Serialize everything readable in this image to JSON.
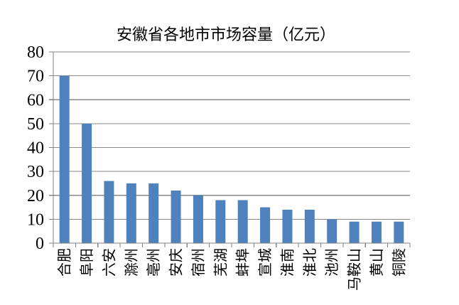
{
  "chart_data": {
    "type": "bar",
    "title": "安徽省各地市市场容量（亿元）",
    "categories": [
      "合肥",
      "阜阳",
      "六安",
      "滁州",
      "亳州",
      "安庆",
      "宿州",
      "芜湖",
      "蚌埠",
      "宣城",
      "淮南",
      "淮北",
      "池州",
      "马鞍山",
      "黄山",
      "铜陵"
    ],
    "values": [
      70,
      50,
      26,
      25,
      25,
      22,
      20,
      18,
      18,
      15,
      14,
      14,
      10,
      9,
      9,
      9
    ],
    "xlabel": "",
    "ylabel": "",
    "ylim": [
      0,
      80
    ],
    "ytick_interval": 10,
    "yticks": [
      0,
      10,
      20,
      30,
      40,
      50,
      60,
      70,
      80
    ],
    "grid": "horizontal gridlines on",
    "legend": "none",
    "x_label_rotation": "90 degrees counterclockwise (reads bottom-to-top)",
    "colors": {
      "bar_fill": "#4F81BD",
      "gridline": "#8A8A8A",
      "axis": "#808080",
      "text": "#000000",
      "background": "#FFFFFF"
    }
  }
}
